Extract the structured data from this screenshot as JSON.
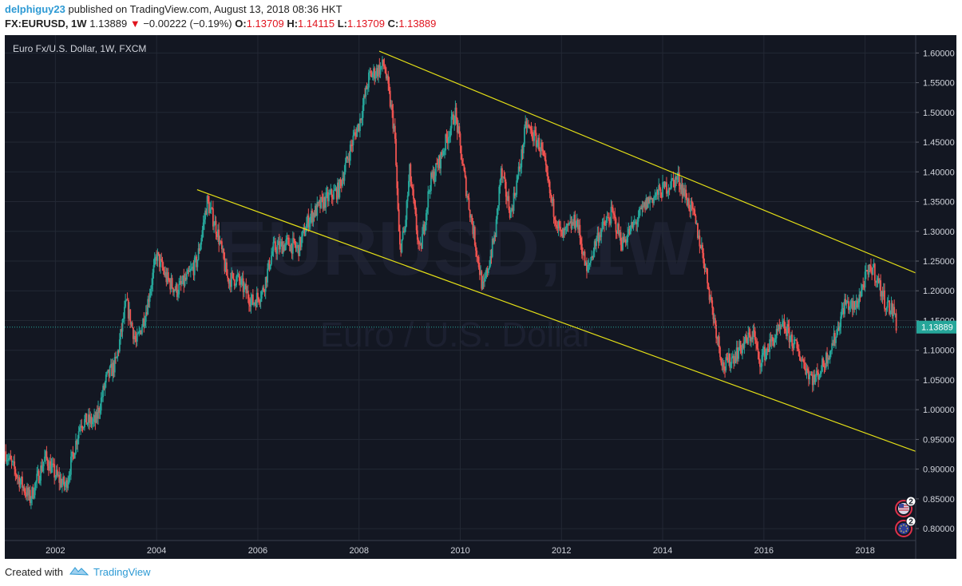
{
  "header": {
    "author": "delphiguy23",
    "published_text": "published on TradingView.com, August 13, 2018 08:36 HKT",
    "symbol": "FX:EURUSD, 1W",
    "last": "1.13889",
    "change": "−0.00222 (−0.19%)",
    "o_label": "O:",
    "o_value": "1.13709",
    "h_label": "H:",
    "h_value": "1.14115",
    "l_label": "L:",
    "l_value": "1.13709",
    "c_label": "C:",
    "c_value": "1.13889"
  },
  "footer": {
    "created_with": "Created with",
    "brand": "TradingView"
  },
  "colors": {
    "background": "#131722",
    "up": "#26a69a",
    "down": "#ef5350",
    "trendline": "#e5e016",
    "price_line": "#26a69a"
  },
  "chart_data": {
    "type": "candlestick",
    "title": "Euro Fx/U.S. Dollar, 1W, FXCM",
    "watermark_symbol": "EURUSD, 1W",
    "watermark_name": "Euro / U.S. Dollar",
    "ylim": [
      0.78,
      1.63
    ],
    "xlim": [
      2001.0,
      2019.0
    ],
    "yticks": [
      "0.80000",
      "0.85000",
      "0.90000",
      "0.95000",
      "1.00000",
      "1.05000",
      "1.10000",
      "1.15000",
      "1.20000",
      "1.25000",
      "1.30000",
      "1.35000",
      "1.40000",
      "1.45000",
      "1.50000",
      "1.55000",
      "1.60000"
    ],
    "xticks": [
      "2002",
      "2004",
      "2006",
      "2008",
      "2010",
      "2012",
      "2014",
      "2016",
      "2018"
    ],
    "last_price": "1.13889",
    "path": [
      [
        2001.0,
        0.93
      ],
      [
        2001.3,
        0.88
      ],
      [
        2001.5,
        0.85
      ],
      [
        2001.8,
        0.92
      ],
      [
        2002.0,
        0.89
      ],
      [
        2002.2,
        0.87
      ],
      [
        2002.5,
        0.98
      ],
      [
        2002.8,
        0.98
      ],
      [
        2003.0,
        1.05
      ],
      [
        2003.2,
        1.08
      ],
      [
        2003.4,
        1.18
      ],
      [
        2003.6,
        1.11
      ],
      [
        2003.8,
        1.17
      ],
      [
        2004.0,
        1.26
      ],
      [
        2004.2,
        1.22
      ],
      [
        2004.4,
        1.2
      ],
      [
        2004.6,
        1.22
      ],
      [
        2004.8,
        1.25
      ],
      [
        2005.0,
        1.35
      ],
      [
        2005.2,
        1.3
      ],
      [
        2005.4,
        1.22
      ],
      [
        2005.6,
        1.22
      ],
      [
        2005.9,
        1.18
      ],
      [
        2006.1,
        1.2
      ],
      [
        2006.3,
        1.27
      ],
      [
        2006.6,
        1.28
      ],
      [
        2006.8,
        1.27
      ],
      [
        2007.0,
        1.32
      ],
      [
        2007.3,
        1.35
      ],
      [
        2007.6,
        1.37
      ],
      [
        2007.9,
        1.46
      ],
      [
        2008.0,
        1.48
      ],
      [
        2008.2,
        1.56
      ],
      [
        2008.5,
        1.58
      ],
      [
        2008.7,
        1.47
      ],
      [
        2008.8,
        1.27
      ],
      [
        2008.9,
        1.3
      ],
      [
        2009.0,
        1.4
      ],
      [
        2009.2,
        1.26
      ],
      [
        2009.4,
        1.38
      ],
      [
        2009.6,
        1.42
      ],
      [
        2009.9,
        1.5
      ],
      [
        2010.1,
        1.38
      ],
      [
        2010.3,
        1.28
      ],
      [
        2010.45,
        1.2
      ],
      [
        2010.7,
        1.3
      ],
      [
        2010.8,
        1.4
      ],
      [
        2011.0,
        1.33
      ],
      [
        2011.2,
        1.42
      ],
      [
        2011.3,
        1.48
      ],
      [
        2011.6,
        1.44
      ],
      [
        2011.8,
        1.35
      ],
      [
        2012.0,
        1.29
      ],
      [
        2012.3,
        1.32
      ],
      [
        2012.5,
        1.23
      ],
      [
        2012.7,
        1.29
      ],
      [
        2013.0,
        1.33
      ],
      [
        2013.2,
        1.28
      ],
      [
        2013.5,
        1.32
      ],
      [
        2013.7,
        1.35
      ],
      [
        2014.0,
        1.37
      ],
      [
        2014.3,
        1.39
      ],
      [
        2014.6,
        1.33
      ],
      [
        2014.8,
        1.26
      ],
      [
        2015.0,
        1.16
      ],
      [
        2015.2,
        1.07
      ],
      [
        2015.5,
        1.1
      ],
      [
        2015.8,
        1.13
      ],
      [
        2015.9,
        1.08
      ],
      [
        2016.2,
        1.12
      ],
      [
        2016.4,
        1.14
      ],
      [
        2016.6,
        1.11
      ],
      [
        2016.9,
        1.06
      ],
      [
        2017.0,
        1.05
      ],
      [
        2017.2,
        1.08
      ],
      [
        2017.4,
        1.12
      ],
      [
        2017.6,
        1.18
      ],
      [
        2017.8,
        1.17
      ],
      [
        2018.0,
        1.22
      ],
      [
        2018.15,
        1.24
      ],
      [
        2018.4,
        1.18
      ],
      [
        2018.6,
        1.16
      ],
      [
        2018.62,
        1.139
      ]
    ],
    "trendlines": [
      {
        "name": "upper-channel-line",
        "points": [
          [
            2008.4,
            1.603
          ],
          [
            2019.0,
            1.23
          ]
        ]
      },
      {
        "name": "lower-channel-line",
        "points": [
          [
            2004.8,
            1.37
          ],
          [
            2019.0,
            0.93
          ]
        ]
      }
    ],
    "event_markers": [
      {
        "label": "2",
        "flag": "us"
      },
      {
        "label": "2",
        "flag": "eu"
      }
    ]
  }
}
